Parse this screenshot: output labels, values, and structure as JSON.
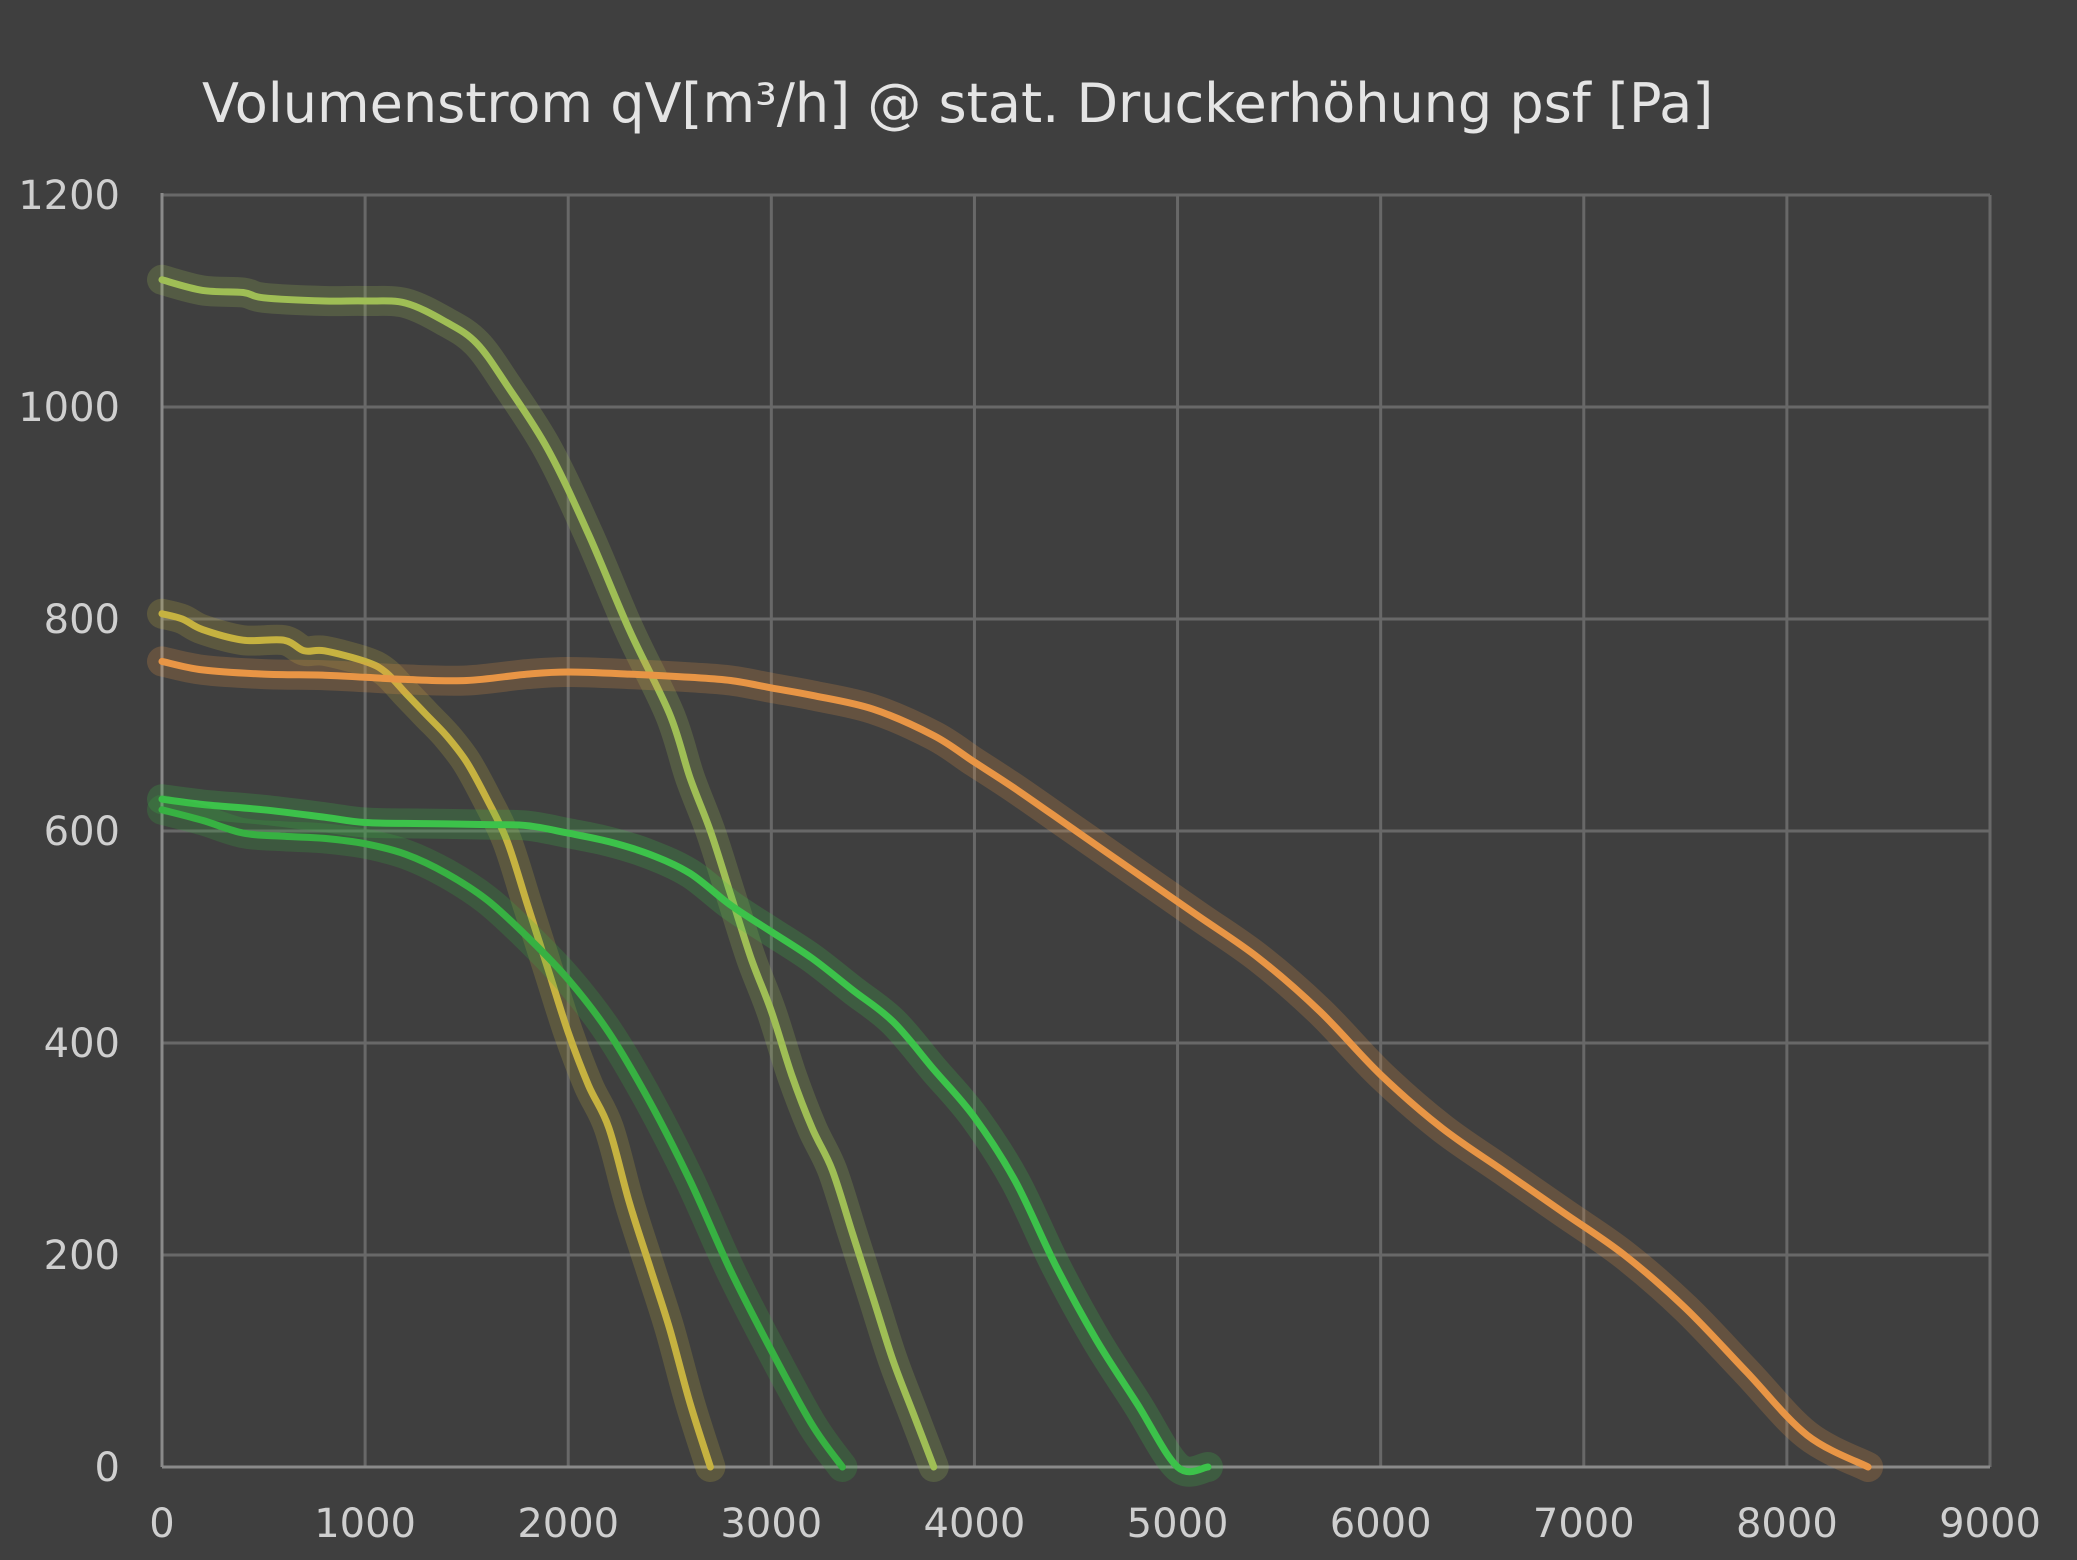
{
  "chart_data": {
    "type": "line",
    "title": "Volumenstrom qV[m³/h] @ stat. Druckerhöhung psf [Pa]",
    "xlabel": "",
    "ylabel": "",
    "xlim": [
      0,
      9000
    ],
    "ylim": [
      0,
      1200
    ],
    "x_ticks": [
      0,
      1000,
      2000,
      3000,
      4000,
      5000,
      6000,
      7000,
      8000,
      9000
    ],
    "y_ticks": [
      0,
      200,
      400,
      600,
      800,
      1000,
      1200
    ],
    "grid": true,
    "legend": "none",
    "series": [
      {
        "color": "#9fbe55",
        "points": [
          [
            0,
            1120
          ],
          [
            200,
            1110
          ],
          [
            400,
            1108
          ],
          [
            500,
            1103
          ],
          [
            800,
            1100
          ],
          [
            1000,
            1100
          ],
          [
            1200,
            1098
          ],
          [
            1400,
            1080
          ],
          [
            1550,
            1060
          ],
          [
            1700,
            1020
          ],
          [
            1900,
            960
          ],
          [
            2100,
            880
          ],
          [
            2300,
            790
          ],
          [
            2500,
            710
          ],
          [
            2600,
            650
          ],
          [
            2700,
            600
          ],
          [
            2800,
            540
          ],
          [
            2900,
            480
          ],
          [
            3000,
            430
          ],
          [
            3100,
            370
          ],
          [
            3200,
            320
          ],
          [
            3300,
            280
          ],
          [
            3400,
            220
          ],
          [
            3500,
            160
          ],
          [
            3600,
            100
          ],
          [
            3700,
            50
          ],
          [
            3800,
            0
          ]
        ]
      },
      {
        "color": "#c6b240",
        "points": [
          [
            0,
            805
          ],
          [
            100,
            800
          ],
          [
            200,
            790
          ],
          [
            400,
            780
          ],
          [
            600,
            780
          ],
          [
            700,
            770
          ],
          [
            800,
            770
          ],
          [
            1000,
            760
          ],
          [
            1100,
            750
          ],
          [
            1200,
            730
          ],
          [
            1300,
            710
          ],
          [
            1400,
            690
          ],
          [
            1500,
            665
          ],
          [
            1600,
            630
          ],
          [
            1700,
            590
          ],
          [
            1800,
            530
          ],
          [
            1900,
            470
          ],
          [
            2000,
            410
          ],
          [
            2100,
            360
          ],
          [
            2200,
            320
          ],
          [
            2300,
            250
          ],
          [
            2400,
            190
          ],
          [
            2500,
            130
          ],
          [
            2600,
            60
          ],
          [
            2700,
            0
          ]
        ]
      },
      {
        "color": "#e89545",
        "points": [
          [
            0,
            760
          ],
          [
            200,
            752
          ],
          [
            500,
            748
          ],
          [
            800,
            747
          ],
          [
            1000,
            745
          ],
          [
            1200,
            743
          ],
          [
            1500,
            742
          ],
          [
            1800,
            748
          ],
          [
            2000,
            750
          ],
          [
            2300,
            748
          ],
          [
            2600,
            745
          ],
          [
            2800,
            742
          ],
          [
            3000,
            735
          ],
          [
            3200,
            728
          ],
          [
            3500,
            715
          ],
          [
            3800,
            690
          ],
          [
            4000,
            665
          ],
          [
            4200,
            640
          ],
          [
            4500,
            600
          ],
          [
            4800,
            560
          ],
          [
            5100,
            520
          ],
          [
            5400,
            480
          ],
          [
            5700,
            430
          ],
          [
            6000,
            370
          ],
          [
            6300,
            320
          ],
          [
            6600,
            280
          ],
          [
            6900,
            240
          ],
          [
            7200,
            200
          ],
          [
            7500,
            150
          ],
          [
            7800,
            90
          ],
          [
            8100,
            30
          ],
          [
            8400,
            0
          ]
        ]
      },
      {
        "color": "#3cc24a",
        "points": [
          [
            0,
            630
          ],
          [
            200,
            625
          ],
          [
            500,
            620
          ],
          [
            800,
            613
          ],
          [
            1000,
            608
          ],
          [
            1300,
            607
          ],
          [
            1600,
            606
          ],
          [
            1800,
            605
          ],
          [
            2000,
            598
          ],
          [
            2200,
            590
          ],
          [
            2400,
            578
          ],
          [
            2600,
            560
          ],
          [
            2800,
            530
          ],
          [
            3000,
            505
          ],
          [
            3200,
            480
          ],
          [
            3400,
            450
          ],
          [
            3600,
            420
          ],
          [
            3800,
            375
          ],
          [
            4000,
            330
          ],
          [
            4200,
            270
          ],
          [
            4400,
            190
          ],
          [
            4600,
            120
          ],
          [
            4800,
            60
          ],
          [
            5000,
            0
          ],
          [
            5150,
            0
          ]
        ]
      },
      {
        "color": "#37b142",
        "points": [
          [
            0,
            620
          ],
          [
            200,
            610
          ],
          [
            400,
            598
          ],
          [
            600,
            595
          ],
          [
            800,
            593
          ],
          [
            1000,
            588
          ],
          [
            1200,
            578
          ],
          [
            1400,
            560
          ],
          [
            1600,
            535
          ],
          [
            1800,
            500
          ],
          [
            2000,
            460
          ],
          [
            2200,
            410
          ],
          [
            2400,
            345
          ],
          [
            2600,
            270
          ],
          [
            2800,
            185
          ],
          [
            3000,
            110
          ],
          [
            3200,
            40
          ],
          [
            3350,
            0
          ]
        ]
      }
    ]
  }
}
